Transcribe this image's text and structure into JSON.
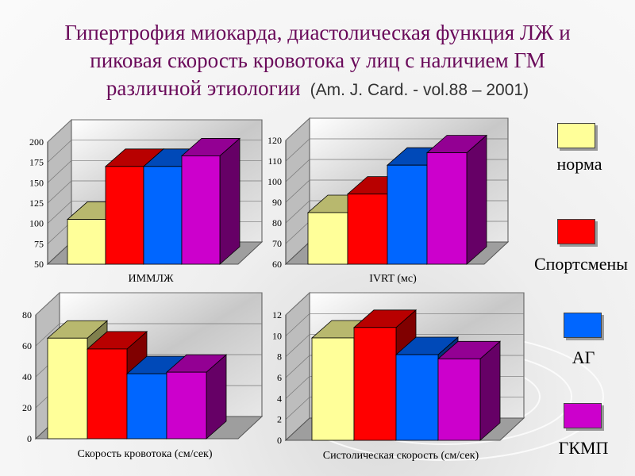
{
  "title": {
    "main": "Гипертрофия миокарда, диастолическая функция ЛЖ и пиковая скорость кровотока у лиц с наличием ГМ различной этиологии",
    "line1": "Гипертрофия миокарда, диастолическая функция ЛЖ и",
    "line2": "пиковая скорость кровотока у лиц с наличием ГМ",
    "line3": "различной этиологии",
    "reference": "(Am. J. Card. - vol.88 – 2001)"
  },
  "colors": {
    "норма": "#ffff99",
    "Спортсмены": "#ff0000",
    "АГ": "#0066ff",
    "ГКМП": "#cc00cc",
    "title": "#6a0a5a"
  },
  "legend": [
    {
      "name": "норма",
      "color": "#ffff99"
    },
    {
      "name": "Спортсмены",
      "color": "#ff0000"
    },
    {
      "name": "АГ",
      "color": "#0066ff"
    },
    {
      "name": "ГКМП",
      "color": "#cc00cc"
    }
  ],
  "chart_data": [
    {
      "type": "bar",
      "xlabel": "ИММЛЖ",
      "ylim": [
        50,
        200
      ],
      "yticks": [
        50,
        75,
        100,
        125,
        150,
        175,
        200
      ],
      "series": [
        {
          "name": "норма",
          "values": [
            105
          ]
        },
        {
          "name": "Спортсмены",
          "values": [
            170
          ]
        },
        {
          "name": "АГ",
          "values": [
            170
          ]
        },
        {
          "name": "ГКМП",
          "values": [
            183
          ]
        }
      ],
      "grid": true
    },
    {
      "type": "bar",
      "xlabel": "IVRT (мс)",
      "ylim": [
        60,
        120
      ],
      "yticks": [
        60,
        70,
        80,
        90,
        100,
        110,
        120
      ],
      "series": [
        {
          "name": "норма",
          "values": [
            85
          ]
        },
        {
          "name": "Спортсмены",
          "values": [
            94
          ]
        },
        {
          "name": "АГ",
          "values": [
            108
          ]
        },
        {
          "name": "ГКМП",
          "values": [
            114
          ]
        }
      ],
      "grid": true
    },
    {
      "type": "bar",
      "xlabel": "Скорость кровотока (см/сек)",
      "ylim": [
        0,
        80
      ],
      "yticks": [
        0,
        20,
        40,
        60,
        80
      ],
      "series": [
        {
          "name": "норма",
          "values": [
            65
          ]
        },
        {
          "name": "Спортсмены",
          "values": [
            58
          ]
        },
        {
          "name": "АГ",
          "values": [
            42
          ]
        },
        {
          "name": "ГКМП",
          "values": [
            43
          ]
        }
      ],
      "grid": true
    },
    {
      "type": "bar",
      "xlabel": "Систолическая скорость (см/сек)",
      "ylim": [
        0,
        12
      ],
      "yticks": [
        0,
        2,
        4,
        6,
        8,
        10,
        12
      ],
      "series": [
        {
          "name": "норма",
          "values": [
            9.8
          ]
        },
        {
          "name": "Спортсмены",
          "values": [
            10.8
          ]
        },
        {
          "name": "АГ",
          "values": [
            8.2
          ]
        },
        {
          "name": "ГКМП",
          "values": [
            7.8
          ]
        }
      ],
      "grid": true
    }
  ]
}
